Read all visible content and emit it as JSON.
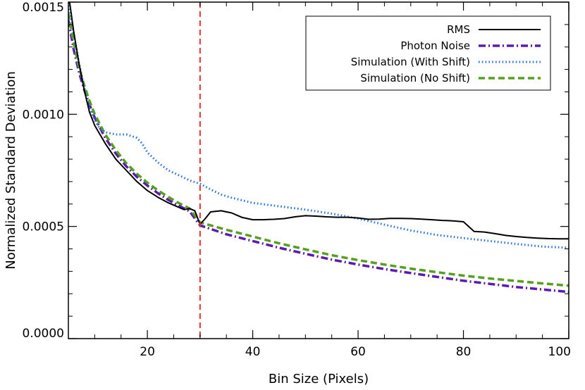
{
  "chart_data": {
    "type": "line",
    "title": "",
    "xlabel": "Bin Size (Pixels)",
    "ylabel": "Normalized Standard Deviation",
    "xlim": [
      5,
      100
    ],
    "ylim": [
      0.0,
      0.0015
    ],
    "x_ticks": [
      20,
      40,
      60,
      80,
      100
    ],
    "x_tick_labels": [
      "20",
      "40",
      "60",
      "80",
      "100"
    ],
    "y_ticks": [
      0.0,
      0.0005,
      0.001,
      0.0015
    ],
    "y_tick_labels": [
      "0.0000",
      "0.0005",
      "0.0010",
      "0.0015"
    ],
    "vline": {
      "x": 30,
      "color": "#e8322a",
      "style": "dashed"
    },
    "legend_position": "top-right",
    "series": [
      {
        "name": "RMS",
        "color": "#000000",
        "style": "solid",
        "x": [
          5,
          6,
          7,
          8,
          9,
          10,
          12,
          14,
          16,
          18,
          20,
          22,
          24,
          26,
          27,
          28,
          29,
          30,
          31,
          32,
          34,
          36,
          38,
          40,
          42,
          44,
          46,
          48,
          50,
          52,
          54,
          56,
          58,
          60,
          62,
          64,
          66,
          68,
          70,
          72,
          74,
          76,
          78,
          80,
          81,
          82,
          84,
          86,
          88,
          90,
          92,
          94,
          96,
          98,
          100
        ],
        "y": [
          0.00154,
          0.00137,
          0.00123,
          0.00111,
          0.00101,
          0.00095,
          0.00087,
          0.0008,
          0.00075,
          0.0007,
          0.00066,
          0.00063,
          0.000605,
          0.000585,
          0.000575,
          0.00058,
          0.00057,
          0.00051,
          0.000535,
          0.000565,
          0.00057,
          0.00056,
          0.00054,
          0.00053,
          0.00053,
          0.000532,
          0.000535,
          0.000543,
          0.000548,
          0.000546,
          0.000543,
          0.000541,
          0.000541,
          0.000538,
          0.000532,
          0.000533,
          0.000536,
          0.000536,
          0.000535,
          0.000533,
          0.00053,
          0.000527,
          0.000525,
          0.000521,
          0.0005,
          0.000478,
          0.000475,
          0.000468,
          0.00046,
          0.000455,
          0.000451,
          0.000448,
          0.000446,
          0.000445,
          0.000445
        ]
      },
      {
        "name": "Photon Noise",
        "color": "#5a1bb0",
        "style": "dash-dot",
        "x": [
          5,
          6,
          7,
          8,
          9,
          10,
          12,
          14,
          16,
          18,
          20,
          22,
          24,
          26,
          28,
          30,
          35,
          40,
          45,
          50,
          55,
          60,
          65,
          70,
          75,
          80,
          85,
          90,
          95,
          100
        ],
        "y": [
          0.00142,
          0.00129,
          0.00119,
          0.00111,
          0.001043,
          0.000985,
          0.000895,
          0.000825,
          0.000768,
          0.000721,
          0.000682,
          0.000648,
          0.000618,
          0.000592,
          0.000568,
          0.000505,
          0.000465,
          0.000435,
          0.000405,
          0.000378,
          0.000352,
          0.00033,
          0.00031,
          0.000292,
          0.000275,
          0.000258,
          0.000244,
          0.00023,
          0.000219,
          0.000208
        ]
      },
      {
        "name": "Simulation (With Shift)",
        "color": "#2a73e0",
        "style": "dotted",
        "x": [
          5,
          6,
          7,
          8,
          9,
          10,
          11,
          12,
          13,
          14,
          16,
          18,
          19,
          20,
          22,
          24,
          26,
          28,
          30,
          32,
          34,
          36,
          40,
          45,
          50,
          55,
          60,
          65,
          70,
          75,
          80,
          85,
          90,
          95,
          100
        ],
        "y": [
          0.0015,
          0.00136,
          0.00123,
          0.00112,
          0.00103,
          0.000975,
          0.000935,
          0.00092,
          0.000915,
          0.00091,
          0.00091,
          0.000895,
          0.00087,
          0.00083,
          0.000785,
          0.00075,
          0.000728,
          0.000705,
          0.00069,
          0.000665,
          0.000642,
          0.000628,
          0.000605,
          0.00059,
          0.000575,
          0.000557,
          0.000535,
          0.000508,
          0.000482,
          0.000462,
          0.000448,
          0.000435,
          0.000422,
          0.00041,
          0.000405
        ]
      },
      {
        "name": "Simulation (No Shift)",
        "color": "#55a01e",
        "style": "dashed",
        "x": [
          5,
          6,
          7,
          8,
          9,
          10,
          12,
          14,
          16,
          18,
          20,
          22,
          24,
          26,
          28,
          30,
          35,
          40,
          45,
          50,
          55,
          60,
          65,
          70,
          75,
          80,
          85,
          90,
          95,
          100
        ],
        "y": [
          0.00145,
          0.00132,
          0.00121,
          0.00113,
          0.00106,
          0.001,
          0.00091,
          0.00084,
          0.000782,
          0.000735,
          0.000695,
          0.000661,
          0.000631,
          0.000604,
          0.00058,
          0.000518,
          0.000485,
          0.000455,
          0.000425,
          0.000398,
          0.000372,
          0.00035,
          0.00033,
          0.000312,
          0.000296,
          0.000281,
          0.000268,
          0.000257,
          0.000246,
          0.000236
        ]
      }
    ]
  }
}
